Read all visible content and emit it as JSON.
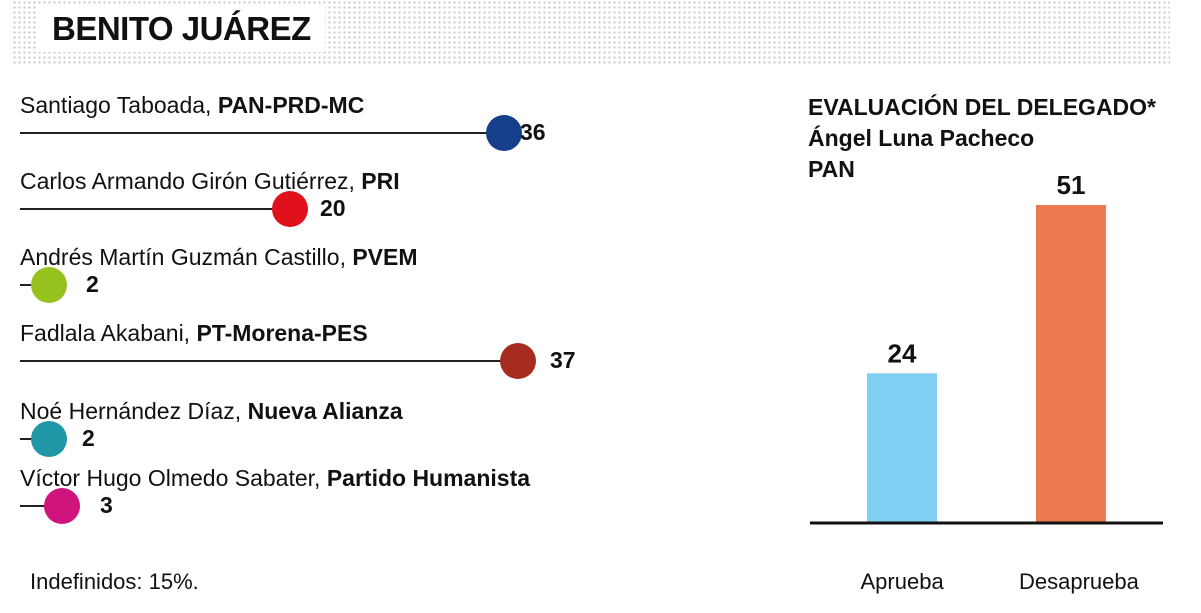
{
  "header": {
    "title": "BENITO JUÁREZ"
  },
  "candidates": [
    {
      "name": "Santiago Taboada, ",
      "party": "PAN-PRD-MC",
      "value": 36,
      "color": "#153f8a"
    },
    {
      "name": "Carlos Armando Girón Gutiérrez, ",
      "party": "PRI",
      "value": 20,
      "color": "#e0111b"
    },
    {
      "name": "Andrés Martín Guzmán Castillo, ",
      "party": "PVEM",
      "value": 2,
      "color": "#97c11f"
    },
    {
      "name": "Fadlala Akabani, ",
      "party": "PT-Morena-PES",
      "value": 37,
      "color": "#a52c1f"
    },
    {
      "name": "Noé Hernández Díaz, ",
      "party": "Nueva Alianza",
      "value": 2,
      "color": "#1f97a6"
    },
    {
      "name": "Víctor Hugo Olmedo Sabater, ",
      "party": "Partido Humanista",
      "value": 3,
      "color": "#d0147e"
    }
  ],
  "footnote": "Indefinidos: 15%.",
  "evaluation": {
    "title_line1": "EVALUACIÓN DEL DELEGADO*",
    "title_line2": "Ángel Luna Pacheco",
    "title_line3": "PAN"
  },
  "chart_data": {
    "type": "bar",
    "categories": [
      "Aprueba",
      "Desaprueba"
    ],
    "values": [
      24,
      51
    ],
    "colors": [
      "#7fcff3",
      "#ec7a4e"
    ],
    "title": "EVALUACIÓN DEL DELEGADO* Ángel Luna Pacheco PAN",
    "ylim": [
      0,
      51
    ]
  }
}
